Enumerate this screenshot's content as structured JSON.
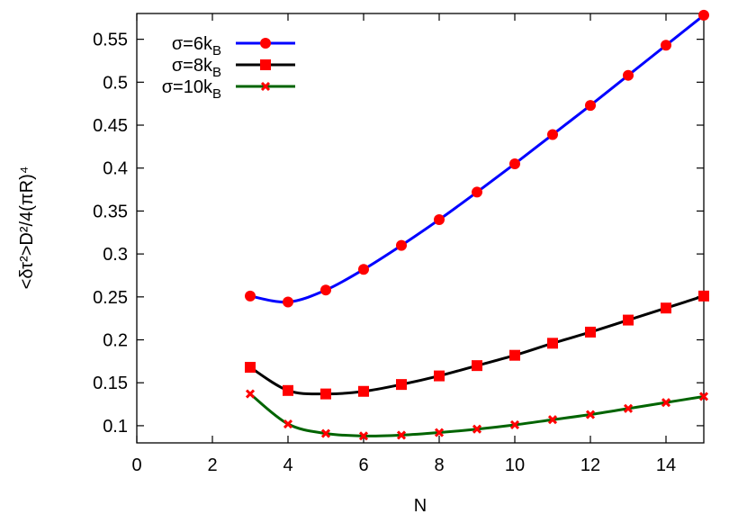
{
  "chart_data": {
    "type": "line",
    "title": "",
    "xlabel": "N",
    "ylabel": "<δτ²>D²/4(πR)⁴",
    "xlim": [
      0,
      15
    ],
    "ylim": [
      0.08,
      0.58
    ],
    "xticks": [
      0,
      2,
      4,
      6,
      8,
      10,
      12,
      14
    ],
    "yticks": [
      0.1,
      0.15,
      0.2,
      0.25,
      0.3,
      0.35,
      0.4,
      0.45,
      0.5,
      0.55
    ],
    "grid": false,
    "legend": "top-left",
    "x": [
      3,
      4,
      5,
      6,
      7,
      8,
      9,
      10,
      11,
      12,
      13,
      14,
      15
    ],
    "series": [
      {
        "name": "σ=6kB",
        "name_main": "σ=6k",
        "name_sub": "B",
        "color": "#0000ff",
        "marker": "circle",
        "marker_color": "#ff0000",
        "values": [
          0.251,
          0.244,
          0.258,
          0.282,
          0.31,
          0.34,
          0.372,
          0.405,
          0.439,
          0.473,
          0.508,
          0.543,
          0.578
        ]
      },
      {
        "name": "σ=8kB",
        "name_main": "σ=8k",
        "name_sub": "B",
        "color": "#000000",
        "marker": "square",
        "marker_color": "#ff0000",
        "values": [
          0.168,
          0.141,
          0.137,
          0.14,
          0.148,
          0.158,
          0.17,
          0.182,
          0.196,
          0.209,
          0.223,
          0.237,
          0.251
        ]
      },
      {
        "name": "σ=10kB",
        "name_main": "σ=10k",
        "name_sub": "B",
        "color": "#006400",
        "marker": "x",
        "marker_color": "#ff0000",
        "values": [
          0.137,
          0.102,
          0.091,
          0.088,
          0.089,
          0.092,
          0.096,
          0.101,
          0.107,
          0.113,
          0.12,
          0.127,
          0.134
        ]
      }
    ]
  }
}
